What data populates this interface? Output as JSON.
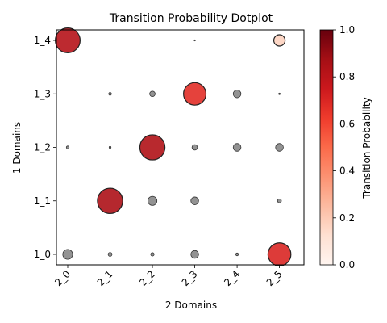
{
  "chart_data": {
    "type": "scatter",
    "title": "Transition Probability Dotplot",
    "xlabel": "2 Domains",
    "ylabel": "1 Domains",
    "x_categories": [
      "2_0",
      "2_1",
      "2_2",
      "2_3",
      "2_4",
      "2_5"
    ],
    "y_categories": [
      "1_0",
      "1_1",
      "1_2",
      "1_3",
      "1_4"
    ],
    "colorbar": {
      "label": "Transition Probability",
      "range": [
        0,
        1
      ],
      "ticks": [
        "0.0",
        "0.2",
        "0.4",
        "0.6",
        "0.8",
        "1.0"
      ],
      "colormap": "Reds"
    },
    "threshold_note_grey": "values below highlight threshold drawn in grey",
    "points": [
      {
        "x": "2_0",
        "y": "1_4",
        "value": 0.82,
        "highlight": true
      },
      {
        "x": "2_1",
        "y": "1_4",
        "value": 0.0,
        "highlight": false
      },
      {
        "x": "2_2",
        "y": "1_4",
        "value": 0.0,
        "highlight": false
      },
      {
        "x": "2_3",
        "y": "1_4",
        "value": 0.002,
        "highlight": false
      },
      {
        "x": "2_4",
        "y": "1_4",
        "value": 0.0,
        "highlight": false
      },
      {
        "x": "2_5",
        "y": "1_4",
        "value": 0.17,
        "highlight": true
      },
      {
        "x": "2_0",
        "y": "1_3",
        "value": 0.0,
        "highlight": false
      },
      {
        "x": "2_1",
        "y": "1_3",
        "value": 0.01,
        "highlight": false
      },
      {
        "x": "2_2",
        "y": "1_3",
        "value": 0.04,
        "highlight": false
      },
      {
        "x": "2_3",
        "y": "1_3",
        "value": 0.67,
        "highlight": true
      },
      {
        "x": "2_4",
        "y": "1_3",
        "value": 0.08,
        "highlight": false
      },
      {
        "x": "2_5",
        "y": "1_3",
        "value": 0.003,
        "highlight": false
      },
      {
        "x": "2_0",
        "y": "1_2",
        "value": 0.01,
        "highlight": false
      },
      {
        "x": "2_1",
        "y": "1_2",
        "value": 0.005,
        "highlight": false
      },
      {
        "x": "2_2",
        "y": "1_2",
        "value": 0.84,
        "highlight": true
      },
      {
        "x": "2_3",
        "y": "1_2",
        "value": 0.04,
        "highlight": false
      },
      {
        "x": "2_4",
        "y": "1_2",
        "value": 0.08,
        "highlight": false
      },
      {
        "x": "2_5",
        "y": "1_2",
        "value": 0.08,
        "highlight": false
      },
      {
        "x": "2_0",
        "y": "1_1",
        "value": 0.0,
        "highlight": false
      },
      {
        "x": "2_1",
        "y": "1_1",
        "value": 0.85,
        "highlight": true
      },
      {
        "x": "2_2",
        "y": "1_1",
        "value": 0.11,
        "highlight": false
      },
      {
        "x": "2_3",
        "y": "1_1",
        "value": 0.08,
        "highlight": false
      },
      {
        "x": "2_4",
        "y": "1_1",
        "value": 0.0,
        "highlight": false
      },
      {
        "x": "2_5",
        "y": "1_1",
        "value": 0.02,
        "highlight": false
      },
      {
        "x": "2_0",
        "y": "1_0",
        "value": 0.13,
        "highlight": false
      },
      {
        "x": "2_1",
        "y": "1_0",
        "value": 0.02,
        "highlight": false
      },
      {
        "x": "2_2",
        "y": "1_0",
        "value": 0.015,
        "highlight": false
      },
      {
        "x": "2_3",
        "y": "1_0",
        "value": 0.08,
        "highlight": false
      },
      {
        "x": "2_4",
        "y": "1_0",
        "value": 0.01,
        "highlight": false
      },
      {
        "x": "2_5",
        "y": "1_0",
        "value": 0.7,
        "highlight": true
      }
    ],
    "grid": false
  }
}
